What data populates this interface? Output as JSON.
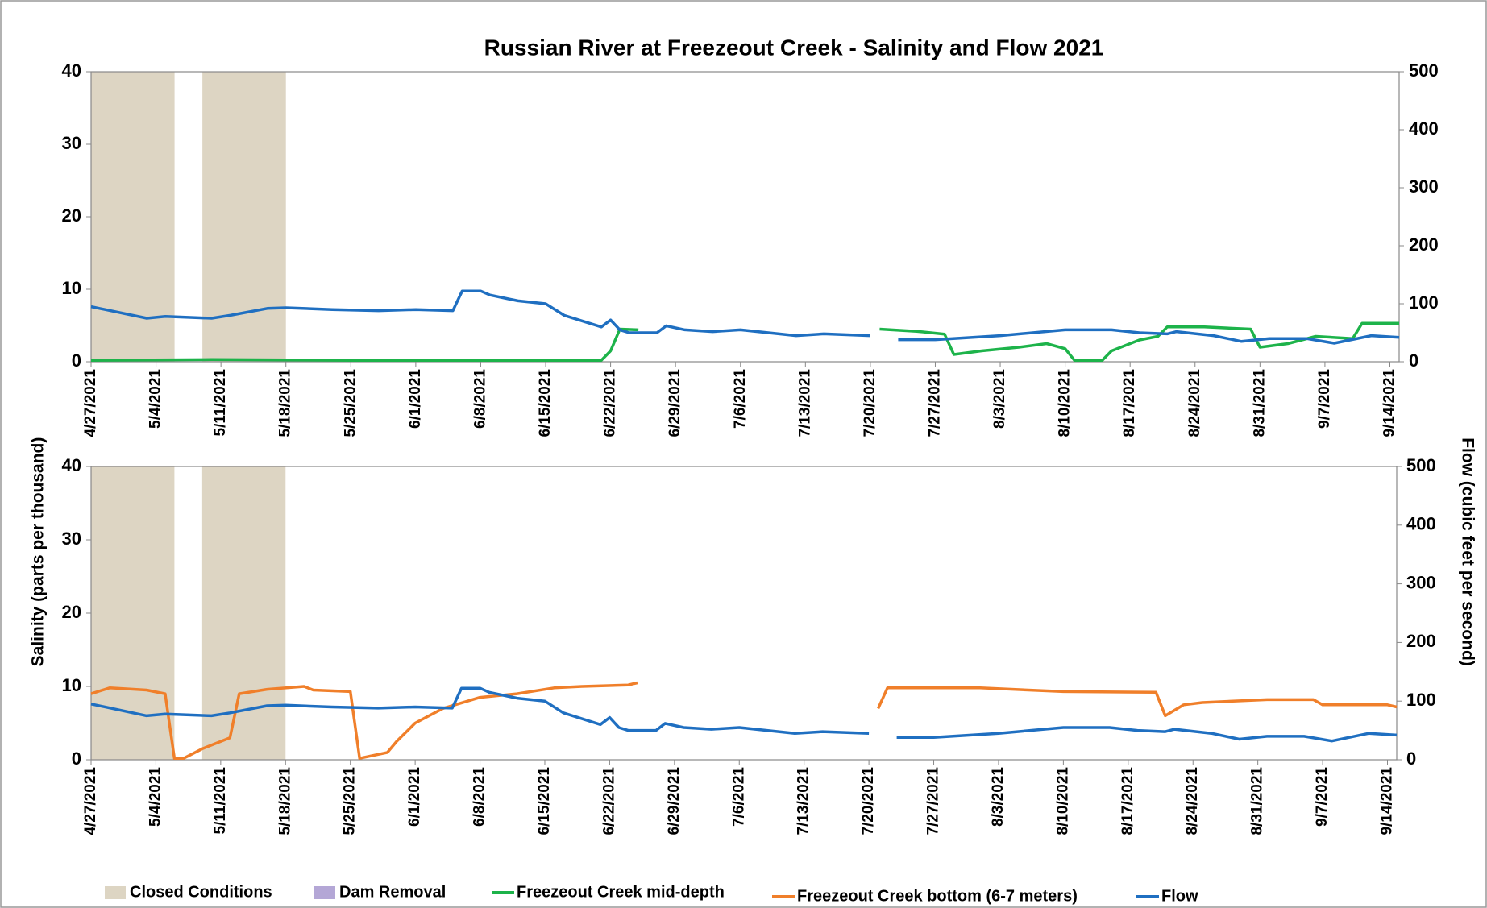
{
  "chart_data": [
    {
      "type": "line",
      "title": "Russian River at Freezeout Creek - Salinity and Flow 2021",
      "ylabel": "Salinity (parts per thousand)",
      "y2label": "Flow (cubic feet per second)",
      "xlim": [
        "4/27/2021",
        "9/15/2021"
      ],
      "xticks": [
        "4/27/2021",
        "5/4/2021",
        "5/11/2021",
        "5/18/2021",
        "5/25/2021",
        "6/1/2021",
        "6/8/2021",
        "6/15/2021",
        "6/22/2021",
        "6/29/2021",
        "7/6/2021",
        "7/13/2021",
        "7/20/2021",
        "7/27/2021",
        "8/3/2021",
        "8/10/2021",
        "8/17/2021",
        "8/24/2021",
        "8/31/2021",
        "9/7/2021",
        "9/14/2021"
      ],
      "ylim": [
        0,
        40
      ],
      "yticks": [
        0,
        10,
        20,
        30,
        40
      ],
      "y2lim": [
        0,
        500
      ],
      "y2ticks": [
        0,
        100,
        200,
        300,
        400,
        500
      ],
      "spans": [
        {
          "start": "4/27/2021",
          "end": "5/6/2021",
          "color": "#ddd5c3"
        },
        {
          "start": "5/9/2021",
          "end": "5/18/2021",
          "color": "#ddd5c3"
        }
      ],
      "series": [
        {
          "name": "Freezeout Creek mid-depth",
          "color": "#1db34a",
          "axis": "y",
          "x": [
            "4/27/2021",
            "5/10/2021",
            "5/25/2021",
            "6/10/2021",
            "6/21/2021",
            "6/22/2021",
            "6/23/2021",
            "6/25/2021",
            "7/1/2021",
            "7/21/2021",
            "7/25/2021",
            "7/28/2021",
            "7/29/2021",
            "8/1/2021",
            "8/5/2021",
            "8/8/2021",
            "8/10/2021",
            "8/11/2021",
            "8/14/2021",
            "8/15/2021",
            "8/18/2021",
            "8/20/2021",
            "8/21/2021",
            "8/25/2021",
            "8/30/2021",
            "8/31/2021",
            "9/3/2021",
            "9/6/2021",
            "9/10/2021",
            "9/11/2021",
            "9/15/2021"
          ],
          "values": [
            0.2,
            0.3,
            0.2,
            0.2,
            0.2,
            1.5,
            4.5,
            4.4,
            null,
            4.5,
            4.2,
            3.8,
            1,
            1.5,
            2,
            2.5,
            1.8,
            0.2,
            0.2,
            1.5,
            3,
            3.5,
            4.8,
            4.8,
            4.5,
            2,
            2.5,
            3.5,
            3.2,
            5.3,
            5.3
          ]
        },
        {
          "name": "Flow",
          "color": "#1f6fc1",
          "axis": "y2",
          "x": [
            "4/27/2021",
            "5/3/2021",
            "5/5/2021",
            "5/10/2021",
            "5/12/2021",
            "5/16/2021",
            "5/18/2021",
            "5/23/2021",
            "5/28/2021",
            "6/1/2021",
            "6/5/2021",
            "6/6/2021",
            "6/8/2021",
            "6/9/2021",
            "6/12/2021",
            "6/15/2021",
            "6/17/2021",
            "6/21/2021",
            "6/22/2021",
            "6/23/2021",
            "6/24/2021",
            "6/27/2021",
            "6/28/2021",
            "6/30/2021",
            "7/3/2021",
            "7/6/2021",
            "7/9/2021",
            "7/12/2021",
            "7/15/2021",
            "7/20/2021",
            "7/21/2021",
            "7/23/2021",
            "7/27/2021",
            "8/3/2021",
            "8/10/2021",
            "8/15/2021",
            "8/18/2021",
            "8/21/2021",
            "8/22/2021",
            "8/26/2021",
            "8/29/2021",
            "9/1/2021",
            "9/5/2021",
            "9/8/2021",
            "9/12/2021",
            "9/15/2021"
          ],
          "values": [
            95,
            75,
            78,
            75,
            80,
            92,
            93,
            90,
            88,
            90,
            88,
            122,
            122,
            115,
            105,
            100,
            80,
            60,
            72,
            55,
            50,
            50,
            62,
            55,
            52,
            55,
            50,
            45,
            48,
            45,
            null,
            38,
            38,
            45,
            55,
            55,
            50,
            48,
            52,
            45,
            35,
            40,
            40,
            32,
            45,
            42
          ]
        }
      ]
    },
    {
      "type": "line",
      "xlim": [
        "4/27/2021",
        "9/15/2021"
      ],
      "xticks": [
        "4/27/2021",
        "5/4/2021",
        "5/11/2021",
        "5/18/2021",
        "5/25/2021",
        "6/1/2021",
        "6/8/2021",
        "6/15/2021",
        "6/22/2021",
        "6/29/2021",
        "7/6/2021",
        "7/13/2021",
        "7/20/2021",
        "7/27/2021",
        "8/3/2021",
        "8/10/2021",
        "8/17/2021",
        "8/24/2021",
        "8/31/2021",
        "9/7/2021",
        "9/14/2021"
      ],
      "ylim": [
        0,
        40
      ],
      "yticks": [
        0,
        10,
        20,
        30,
        40
      ],
      "y2lim": [
        0,
        500
      ],
      "y2ticks": [
        0,
        100,
        200,
        300,
        400,
        500
      ],
      "spans": [
        {
          "start": "4/27/2021",
          "end": "5/6/2021",
          "color": "#ddd5c3"
        },
        {
          "start": "5/9/2021",
          "end": "5/18/2021",
          "color": "#ddd5c3"
        }
      ],
      "series": [
        {
          "name": "Freezeout Creek bottom (6-7 meters)",
          "color": "#f07f2a",
          "axis": "y",
          "x": [
            "4/27/2021",
            "4/29/2021",
            "5/3/2021",
            "5/5/2021",
            "5/6/2021",
            "5/7/2021",
            "5/9/2021",
            "5/12/2021",
            "5/13/2021",
            "5/16/2021",
            "5/20/2021",
            "5/21/2021",
            "5/25/2021",
            "5/26/2021",
            "5/29/2021",
            "5/30/2021",
            "6/1/2021",
            "6/4/2021",
            "6/8/2021",
            "6/12/2021",
            "6/16/2021",
            "6/19/2021",
            "6/24/2021",
            "6/25/2021",
            "7/1/2021",
            "7/21/2021",
            "7/22/2021",
            "8/1/2021",
            "8/10/2021",
            "8/20/2021",
            "8/21/2021",
            "8/23/2021",
            "8/25/2021",
            "9/1/2021",
            "9/6/2021",
            "9/7/2021",
            "9/14/2021",
            "9/15/2021"
          ],
          "values": [
            9,
            9.8,
            9.5,
            9,
            0.2,
            0.2,
            1.5,
            3,
            9,
            9.6,
            10,
            9.5,
            9.3,
            0.2,
            1,
            2.5,
            5,
            7,
            8.5,
            9,
            9.8,
            10,
            10.2,
            10.5,
            null,
            7,
            9.8,
            9.8,
            9.3,
            9.2,
            6,
            7.5,
            7.8,
            8.2,
            8.2,
            7.5,
            7.5,
            7.2
          ]
        },
        {
          "name": "Flow",
          "color": "#1f6fc1",
          "axis": "y2",
          "x": [
            "4/27/2021",
            "5/3/2021",
            "5/5/2021",
            "5/10/2021",
            "5/12/2021",
            "5/16/2021",
            "5/18/2021",
            "5/23/2021",
            "5/28/2021",
            "6/1/2021",
            "6/5/2021",
            "6/6/2021",
            "6/8/2021",
            "6/9/2021",
            "6/12/2021",
            "6/15/2021",
            "6/17/2021",
            "6/21/2021",
            "6/22/2021",
            "6/23/2021",
            "6/24/2021",
            "6/27/2021",
            "6/28/2021",
            "6/30/2021",
            "7/3/2021",
            "7/6/2021",
            "7/9/2021",
            "7/12/2021",
            "7/15/2021",
            "7/20/2021",
            "7/21/2021",
            "7/23/2021",
            "7/27/2021",
            "8/3/2021",
            "8/10/2021",
            "8/15/2021",
            "8/18/2021",
            "8/21/2021",
            "8/22/2021",
            "8/26/2021",
            "8/29/2021",
            "9/1/2021",
            "9/5/2021",
            "9/8/2021",
            "9/12/2021",
            "9/15/2021"
          ],
          "values": [
            95,
            75,
            78,
            75,
            80,
            92,
            93,
            90,
            88,
            90,
            88,
            122,
            122,
            115,
            105,
            100,
            80,
            60,
            72,
            55,
            50,
            50,
            62,
            55,
            52,
            55,
            50,
            45,
            48,
            45,
            null,
            38,
            38,
            45,
            55,
            55,
            50,
            48,
            52,
            45,
            35,
            40,
            40,
            32,
            45,
            42
          ]
        }
      ]
    }
  ],
  "legend": [
    {
      "name": "Closed Conditions",
      "color": "#ddd5c3",
      "kind": "patch"
    },
    {
      "name": "Dam Removal",
      "color": "#b4a7d6",
      "kind": "patch"
    },
    {
      "name": "Freezeout Creek mid-depth",
      "color": "#1db34a",
      "kind": "line"
    },
    {
      "name": "Freezeout Creek bottom (6-7 meters)",
      "color": "#f07f2a",
      "kind": "line"
    },
    {
      "name": "Flow",
      "color": "#1f6fc1",
      "kind": "line"
    }
  ]
}
